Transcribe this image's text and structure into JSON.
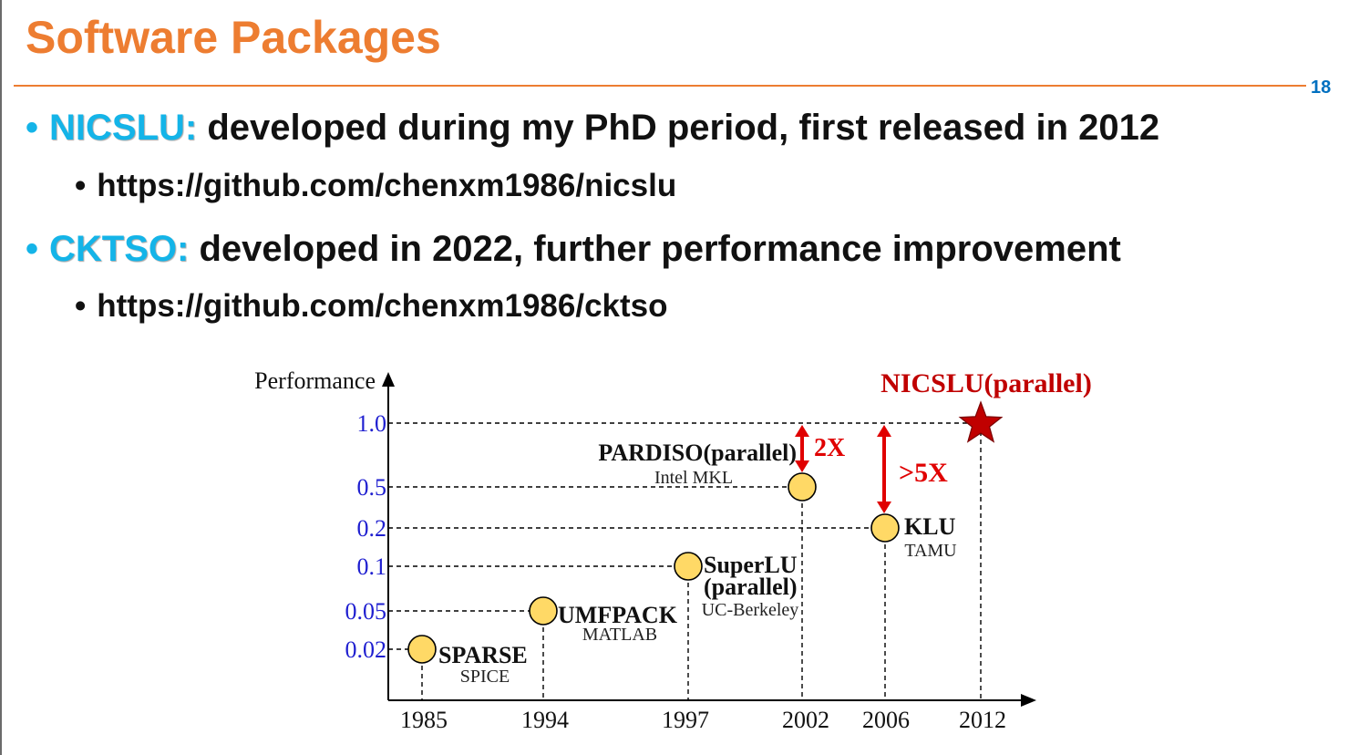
{
  "slide": {
    "title": "Software Packages",
    "page_number": "18",
    "bullets": [
      {
        "highlight": "NICSLU:",
        "text": " developed during my PhD period, first released in 2012"
      },
      {
        "text": "https://github.com/chenxm1986/nicslu"
      },
      {
        "highlight": "CKTSO:",
        "text": " developed in 2022, further performance improvement"
      },
      {
        "text": "https://github.com/chenxm1986/cktso"
      }
    ]
  },
  "colors": {
    "title": "#ed7d31",
    "highlight": "#14b4e8",
    "tick_label": "#1f1fd0",
    "accent_red": "#e00000",
    "star": "#c00000",
    "point_fill": "#ffd966"
  },
  "chart_data": {
    "type": "scatter",
    "ylabel": "Performance",
    "y_ticks": [
      "1.0",
      "0.5",
      "0.2",
      "0.1",
      "0.05",
      "0.02"
    ],
    "x_ticks": [
      "1985",
      "1994",
      "1997",
      "2002",
      "2006",
      "2012"
    ],
    "points": [
      {
        "x": "1985",
        "y": "0.02",
        "name": "SPARSE",
        "sub": "SPICE"
      },
      {
        "x": "1994",
        "y": "0.05",
        "name": "UMFPACK",
        "sub": "MATLAB"
      },
      {
        "x": "1997",
        "y": "0.1",
        "name": "SuperLU",
        "name2": "(parallel)",
        "sub": "UC-Berkeley"
      },
      {
        "x": "2002",
        "y": "0.5",
        "name": "PARDISO(parallel)",
        "sub": "Intel MKL"
      },
      {
        "x": "2006",
        "y": "0.2",
        "name": "KLU",
        "sub": "TAMU"
      },
      {
        "x": "2012",
        "y": "1.0",
        "name": "NICSLU(parallel)",
        "marker": "star"
      }
    ],
    "annotations": [
      {
        "text": "2X",
        "from_y": "0.5",
        "to_y": "1.0",
        "x": "2002"
      },
      {
        "text": ">5X",
        "from_y": "0.2",
        "to_y": "1.0",
        "x": "2006"
      }
    ]
  }
}
